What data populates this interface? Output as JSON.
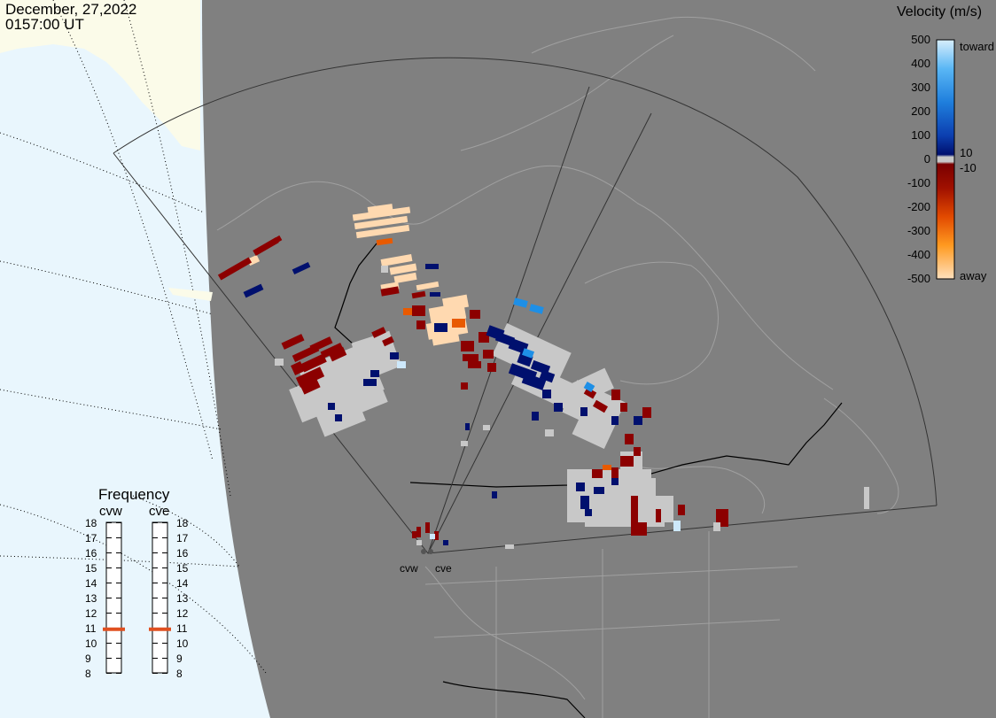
{
  "header": {
    "date": "December, 27,2022",
    "time": "0157:00 UT"
  },
  "colorbar": {
    "title": "Velocity (m/s)",
    "ticks": [
      "500",
      "400",
      "300",
      "200",
      "100",
      "0",
      "-100",
      "-200",
      "-300",
      "-400",
      "-500"
    ],
    "right_labels": [
      "toward",
      "10",
      "-10",
      "away"
    ],
    "colors": {
      "toward_light": "#cde8fb",
      "toward_mid": "#1e8fe6",
      "toward_dark": "#00106e",
      "ground_scatter": "#c8c8c8",
      "away_dark": "#8c0000",
      "away_mid": "#e85a00",
      "away_light": "#ffd9b0"
    }
  },
  "frequency_panel": {
    "title": "Frequency",
    "stations": [
      "cvw",
      "cve"
    ],
    "ticks": [
      "18",
      "17",
      "16",
      "15",
      "14",
      "13",
      "12",
      "11",
      "10",
      "9",
      "8"
    ],
    "units_mhz_range": [
      8,
      18
    ],
    "cvw_frequency": 10.9,
    "cve_frequency": 10.9,
    "marker_color": "#e05020"
  },
  "map_labels": {
    "radar_west": "cvw",
    "radar_east": "cve"
  }
}
